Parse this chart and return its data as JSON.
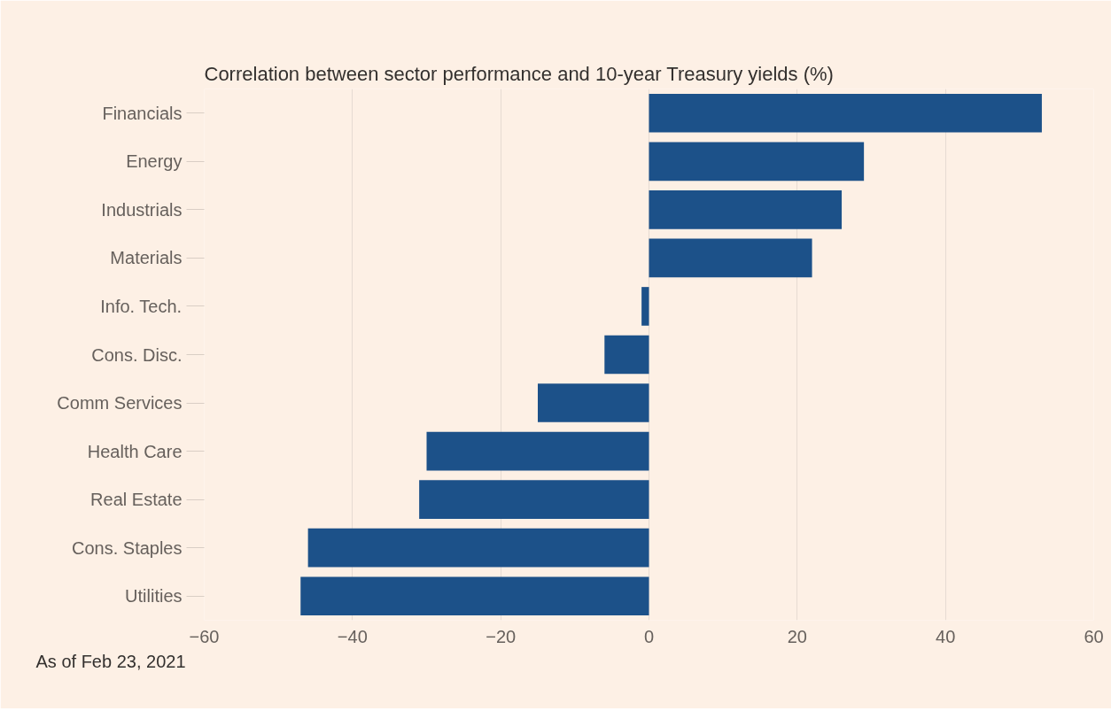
{
  "chart_data": {
    "type": "bar",
    "orientation": "horizontal",
    "title": "Correlation between sector performance and 10-year Treasury yields (%)",
    "categories": [
      "Financials",
      "Energy",
      "Industrials",
      "Materials",
      "Info. Tech.",
      "Cons. Disc.",
      "Comm Services",
      "Health Care",
      "Real Estate",
      "Cons. Staples",
      "Utilities"
    ],
    "values": [
      53,
      29,
      26,
      22,
      -1,
      -6,
      -15,
      -30,
      -31,
      -46,
      -47
    ],
    "color": "#1c5189",
    "xlim": [
      -60,
      60
    ],
    "xticks": [
      -60,
      -40,
      -20,
      0,
      20,
      40,
      60
    ],
    "grid": "x",
    "annotations": [
      "As of Feb 23, 2021"
    ]
  }
}
